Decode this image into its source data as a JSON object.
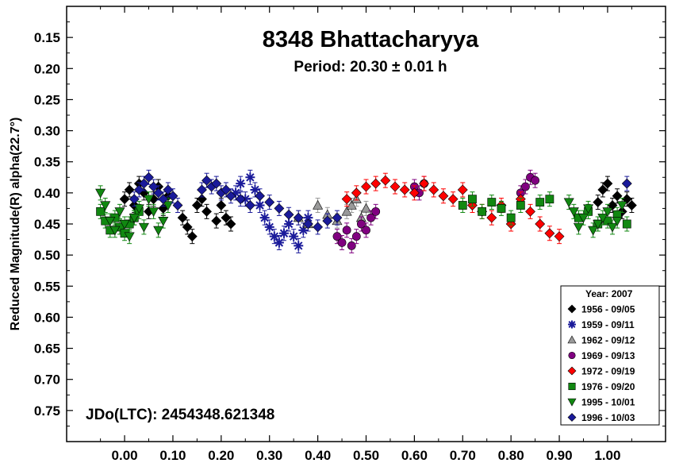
{
  "chart_data": {
    "type": "scatter",
    "title": "8348 Bhattacharyya",
    "subtitle": "Period: 20.30 ± 0.01 h",
    "xlabel": "",
    "ylabel": "Reduced Magnitude(R) alpha(22.7°)",
    "annotation": "JDo(LTC): 2454348.621348",
    "xlim": [
      -0.12,
      1.12
    ],
    "ylim": [
      0.1,
      0.8
    ],
    "y_inverted": true,
    "x_ticks": [
      "0.00",
      "0.10",
      "0.20",
      "0.30",
      "0.40",
      "0.50",
      "0.60",
      "0.70",
      "0.80",
      "0.90",
      "1.00"
    ],
    "x_tick_values": [
      0.0,
      0.1,
      0.2,
      0.3,
      0.4,
      0.5,
      0.6,
      0.7,
      0.8,
      0.9,
      1.0
    ],
    "y_ticks": [
      "0.15",
      "0.20",
      "0.25",
      "0.30",
      "0.35",
      "0.40",
      "0.45",
      "0.50",
      "0.55",
      "0.60",
      "0.65",
      "0.70",
      "0.75"
    ],
    "y_tick_values": [
      0.15,
      0.2,
      0.25,
      0.3,
      0.35,
      0.4,
      0.45,
      0.5,
      0.55,
      0.6,
      0.65,
      0.7,
      0.75
    ],
    "legend": {
      "title": "Year: 2007",
      "placement": "bottom-right"
    },
    "series": [
      {
        "name": "1956 - 09/05",
        "marker": "diamond",
        "color": "#000000",
        "x": [
          0.0,
          0.01,
          0.02,
          0.03,
          0.04,
          0.05,
          0.06,
          0.07,
          0.08,
          0.09,
          0.12,
          0.13,
          0.14,
          0.15,
          0.16,
          0.17,
          0.19,
          0.2,
          0.21,
          0.22,
          0.98,
          0.99,
          1.0,
          1.01,
          1.02,
          1.03,
          1.04,
          1.05
        ],
        "y": [
          0.41,
          0.395,
          0.42,
          0.385,
          0.4,
          0.43,
          0.41,
          0.39,
          0.425,
          0.405,
          0.44,
          0.455,
          0.47,
          0.42,
          0.41,
          0.43,
          0.445,
          0.42,
          0.44,
          0.45,
          0.415,
          0.395,
          0.385,
          0.42,
          0.405,
          0.43,
          0.41,
          0.42
        ]
      },
      {
        "name": "1959 - 09/11",
        "marker": "asterisk",
        "color": "#1a1a9a",
        "x": [
          0.23,
          0.24,
          0.25,
          0.26,
          0.27,
          0.28,
          0.29,
          0.3,
          0.31,
          0.32,
          0.33,
          0.34,
          0.35,
          0.36,
          0.37,
          0.38
        ],
        "y": [
          0.4,
          0.385,
          0.41,
          0.375,
          0.395,
          0.42,
          0.44,
          0.455,
          0.47,
          0.48,
          0.465,
          0.45,
          0.47,
          0.485,
          0.46,
          0.44
        ]
      },
      {
        "name": "1962 - 09/12",
        "marker": "triangle-up",
        "color": "#999999",
        "x": [
          0.36,
          0.38,
          0.4,
          0.42,
          0.44,
          0.46,
          0.47,
          0.48,
          0.49,
          0.5
        ],
        "y": [
          0.44,
          0.45,
          0.42,
          0.435,
          0.445,
          0.43,
          0.42,
          0.41,
          0.44,
          0.425
        ]
      },
      {
        "name": "1969 - 09/13",
        "marker": "circle",
        "color": "#800080",
        "x": [
          0.44,
          0.45,
          0.46,
          0.47,
          0.48,
          0.49,
          0.5,
          0.51,
          0.52,
          0.6,
          0.61,
          0.62,
          0.82,
          0.83,
          0.84,
          0.85
        ],
        "y": [
          0.47,
          0.48,
          0.46,
          0.485,
          0.47,
          0.45,
          0.46,
          0.44,
          0.43,
          0.39,
          0.4,
          0.385,
          0.4,
          0.39,
          0.375,
          0.38
        ]
      },
      {
        "name": "1972 - 09/19",
        "marker": "diamond",
        "color": "#ff0000",
        "x": [
          0.46,
          0.48,
          0.5,
          0.52,
          0.54,
          0.56,
          0.58,
          0.6,
          0.62,
          0.64,
          0.66,
          0.68,
          0.7,
          0.72,
          0.74,
          0.76,
          0.78,
          0.8,
          0.82,
          0.84,
          0.86,
          0.88,
          0.9
        ],
        "y": [
          0.41,
          0.4,
          0.39,
          0.385,
          0.38,
          0.39,
          0.395,
          0.4,
          0.385,
          0.395,
          0.405,
          0.41,
          0.395,
          0.42,
          0.43,
          0.44,
          0.42,
          0.45,
          0.41,
          0.43,
          0.45,
          0.465,
          0.47
        ]
      },
      {
        "name": "1976 - 09/20",
        "marker": "square",
        "color": "#118811",
        "x": [
          -0.05,
          -0.04,
          -0.03,
          -0.02,
          -0.01,
          0.0,
          0.01,
          0.02,
          0.03,
          0.7,
          0.72,
          0.74,
          0.76,
          0.78,
          0.8,
          0.82,
          0.86,
          0.88,
          0.94,
          0.96,
          0.98,
          1.0,
          1.02,
          1.04
        ],
        "y": [
          0.43,
          0.445,
          0.46,
          0.44,
          0.455,
          0.465,
          0.45,
          0.44,
          0.43,
          0.42,
          0.41,
          0.43,
          0.415,
          0.425,
          0.44,
          0.42,
          0.415,
          0.41,
          0.44,
          0.43,
          0.45,
          0.445,
          0.435,
          0.45
        ]
      },
      {
        "name": "1995 - 10/01",
        "marker": "triangle-down",
        "color": "#118811",
        "x": [
          -0.05,
          -0.04,
          -0.03,
          -0.02,
          -0.01,
          0.0,
          0.01,
          0.02,
          0.03,
          0.04,
          0.05,
          0.06,
          0.07,
          0.08,
          0.09,
          0.92,
          0.93,
          0.94,
          0.95,
          0.96,
          0.97,
          0.98,
          0.99,
          1.0,
          1.01,
          1.02,
          1.03
        ],
        "y": [
          0.4,
          0.42,
          0.445,
          0.46,
          0.43,
          0.45,
          0.47,
          0.44,
          0.425,
          0.455,
          0.41,
          0.43,
          0.46,
          0.445,
          0.42,
          0.415,
          0.43,
          0.455,
          0.44,
          0.425,
          0.46,
          0.45,
          0.44,
          0.43,
          0.455,
          0.445,
          0.42
        ]
      },
      {
        "name": "1996 - 10/03",
        "marker": "diamond",
        "color": "#1a1a9a",
        "x": [
          0.02,
          0.03,
          0.04,
          0.05,
          0.06,
          0.07,
          0.08,
          0.09,
          0.1,
          0.11,
          0.16,
          0.17,
          0.18,
          0.19,
          0.2,
          0.21,
          0.22,
          0.24,
          0.26,
          0.28,
          0.3,
          0.32,
          0.34,
          0.36,
          0.38,
          0.4,
          0.42,
          0.44,
          1.04
        ],
        "y": [
          0.41,
          0.395,
          0.385,
          0.375,
          0.39,
          0.4,
          0.41,
          0.395,
          0.405,
          0.42,
          0.395,
          0.38,
          0.39,
          0.385,
          0.4,
          0.395,
          0.405,
          0.41,
          0.42,
          0.405,
          0.415,
          0.425,
          0.435,
          0.44,
          0.45,
          0.455,
          0.445,
          0.44,
          0.385
        ]
      }
    ]
  }
}
